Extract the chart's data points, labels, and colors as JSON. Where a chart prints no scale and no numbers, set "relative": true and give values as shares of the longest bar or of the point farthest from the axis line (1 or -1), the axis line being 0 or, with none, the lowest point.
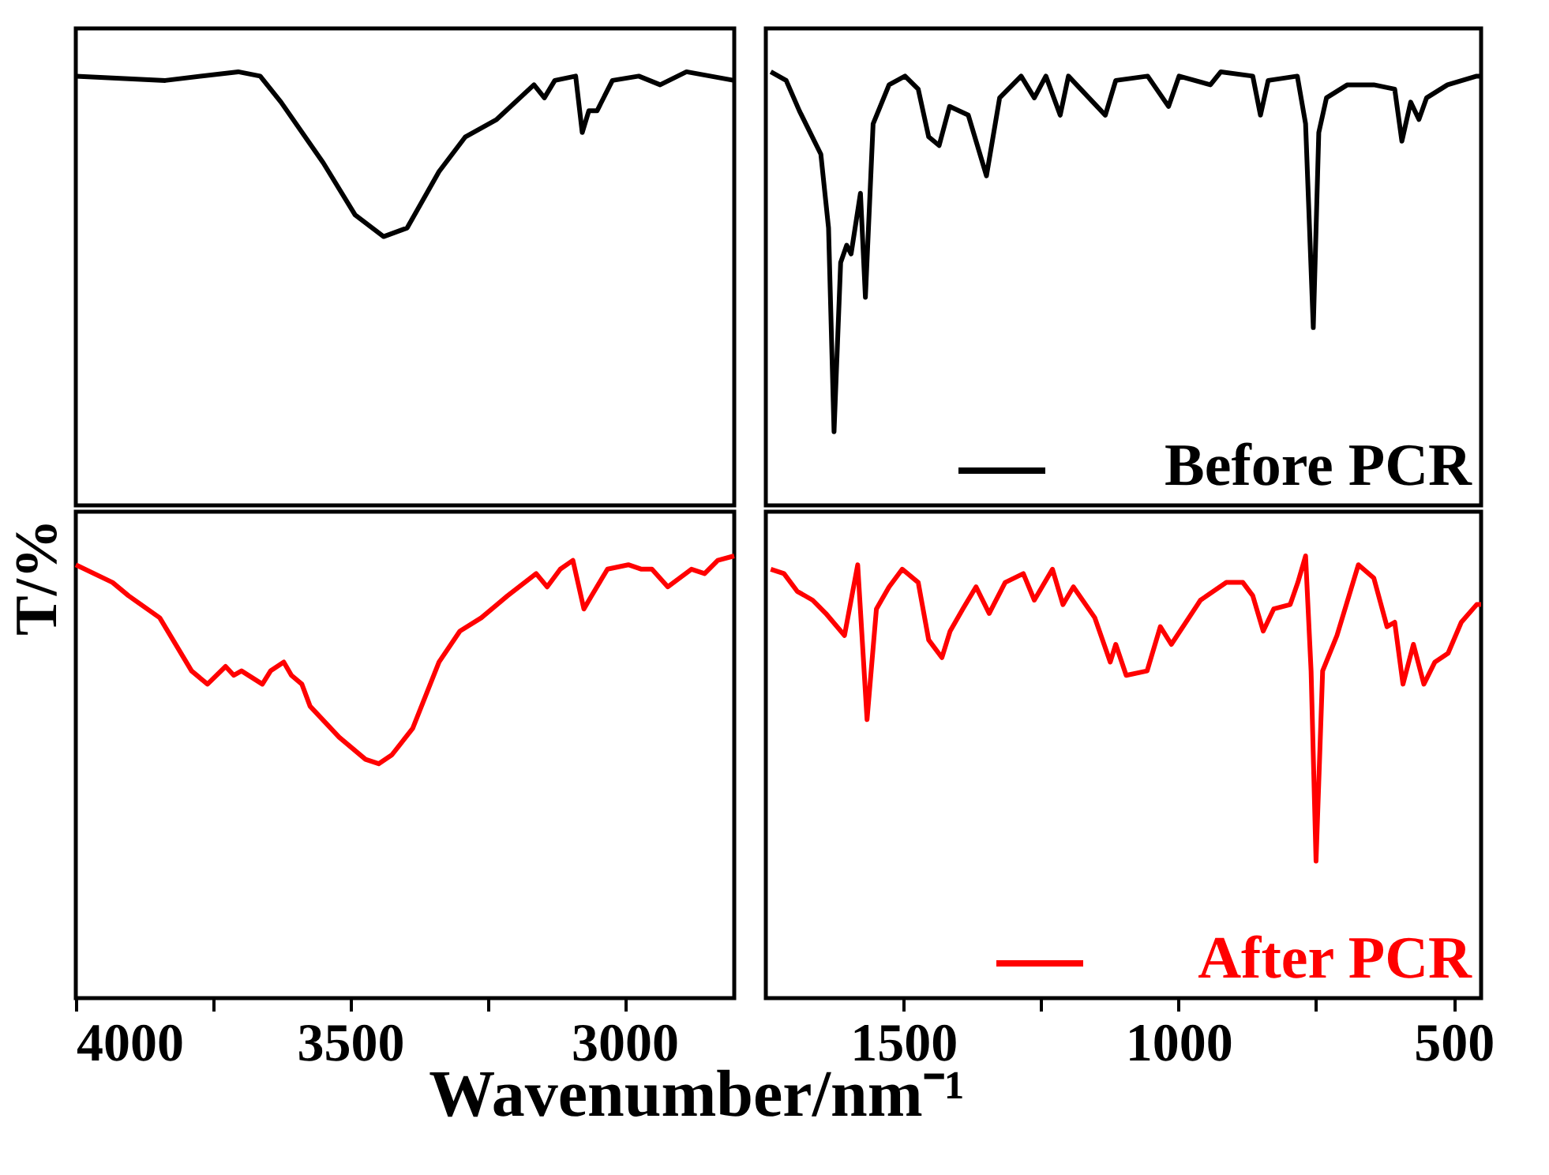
{
  "chart_data": [
    {
      "type": "line",
      "relative": true,
      "ylabel": "T/%",
      "tick_labels": false,
      "xlim": [
        4000,
        2800
      ],
      "x": [
        4000,
        3837,
        3704,
        3664,
        3626,
        3549,
        3491,
        3439,
        3396,
        3338,
        3290,
        3233,
        3165,
        3146,
        3127,
        3089,
        3077,
        3065,
        3050,
        3022,
        2974,
        2935,
        2887,
        2800
      ],
      "series": [
        {
          "color": "#000000",
          "values": [
            0.99,
            0.98,
            1,
            0.99,
            0.93,
            0.79,
            0.67,
            0.62,
            0.64,
            0.77,
            0.85,
            0.89,
            0.97,
            0.94,
            0.98,
            0.99,
            0.86,
            0.91,
            0.91,
            0.98,
            0.99,
            0.97,
            1,
            0.98
          ]
        }
      ]
    },
    {
      "type": "line",
      "relative": true,
      "tick_labels": false,
      "xlim": [
        1750,
        450
      ],
      "legend": "bottom right",
      "x": [
        1741,
        1713,
        1689,
        1650,
        1636,
        1626,
        1614,
        1603,
        1595,
        1578,
        1569,
        1555,
        1526,
        1497,
        1473,
        1454,
        1435,
        1416,
        1382,
        1349,
        1325,
        1286,
        1262,
        1241,
        1215,
        1200,
        1133,
        1114,
        1056,
        1018,
        999,
        942,
        923,
        865,
        851,
        837,
        784,
        769,
        755,
        745,
        731,
        693,
        645,
        607,
        594,
        578,
        563,
        549,
        511,
        458,
        450
      ],
      "series": [
        {
          "name": "Before PCR",
          "color": "#000000",
          "values": [
            1,
            0.98,
            0.91,
            0.81,
            0.64,
            0.17,
            0.56,
            0.6,
            0.58,
            0.72,
            0.48,
            0.88,
            0.97,
            0.99,
            0.96,
            0.85,
            0.83,
            0.92,
            0.9,
            0.76,
            0.94,
            0.99,
            0.94,
            0.99,
            0.9,
            0.99,
            0.9,
            0.98,
            0.99,
            0.92,
            0.99,
            0.97,
            1,
            0.99,
            0.9,
            0.98,
            0.99,
            0.88,
            0.41,
            0.86,
            0.94,
            0.97,
            0.97,
            0.96,
            0.84,
            0.93,
            0.89,
            0.94,
            0.97,
            0.99,
            0.99
          ]
        }
      ]
    },
    {
      "type": "line",
      "relative": true,
      "tick_labels": "x",
      "xlim": [
        4000,
        2800
      ],
      "xlabel": "Wavenumber/nm⁻¹",
      "xticks": [
        4000,
        {
          "value": 3750,
          "label": null
        },
        3500,
        {
          "value": 3250,
          "label": null
        },
        3000
      ],
      "x": [
        4000,
        3933,
        3904,
        3847,
        3789,
        3760,
        3727,
        3712,
        3698,
        3660,
        3645,
        3621,
        3607,
        3588,
        3573,
        3520,
        3472,
        3448,
        3424,
        3386,
        3338,
        3300,
        3261,
        3213,
        3161,
        3141,
        3117,
        3094,
        3074,
        3060,
        3031,
        2993,
        2969,
        2950,
        2921,
        2878,
        2854,
        2830,
        2800
      ],
      "series": [
        {
          "color": "#ff0000",
          "values": [
            0.98,
            0.94,
            0.91,
            0.86,
            0.74,
            0.71,
            0.75,
            0.73,
            0.74,
            0.71,
            0.74,
            0.76,
            0.73,
            0.71,
            0.66,
            0.59,
            0.54,
            0.53,
            0.55,
            0.61,
            0.76,
            0.83,
            0.86,
            0.91,
            0.96,
            0.93,
            0.97,
            0.99,
            0.88,
            0.91,
            0.97,
            0.98,
            0.97,
            0.97,
            0.93,
            0.97,
            0.96,
            0.99,
            1
          ]
        }
      ]
    },
    {
      "type": "line",
      "relative": true,
      "tick_labels": "x",
      "xlim": [
        1750,
        450
      ],
      "legend": "bottom right",
      "xticks": [
        1500,
        {
          "value": 1250,
          "label": null
        },
        1000,
        {
          "value": 750,
          "label": null
        },
        500
      ],
      "x": [
        1741,
        1717,
        1693,
        1665,
        1641,
        1607,
        1583,
        1566,
        1549,
        1526,
        1502,
        1473,
        1454,
        1430,
        1415,
        1392,
        1368,
        1344,
        1315,
        1282,
        1262,
        1229,
        1210,
        1191,
        1152,
        1124,
        1114,
        1095,
        1057,
        1033,
        1013,
        960,
        913,
        883,
        865,
        846,
        827,
        797,
        783,
        769,
        759,
        750,
        738,
        712,
        673,
        645,
        621,
        607,
        592,
        573,
        554,
        534,
        510,
        486,
        458,
        450
      ],
      "series": [
        {
          "name": "After PCR",
          "color": "#ff0000",
          "values": [
            0.97,
            0.96,
            0.92,
            0.9,
            0.87,
            0.82,
            0.98,
            0.63,
            0.88,
            0.93,
            0.97,
            0.94,
            0.81,
            0.77,
            0.83,
            0.88,
            0.93,
            0.87,
            0.94,
            0.96,
            0.9,
            0.97,
            0.89,
            0.93,
            0.86,
            0.76,
            0.8,
            0.73,
            0.74,
            0.84,
            0.8,
            0.9,
            0.94,
            0.94,
            0.91,
            0.83,
            0.88,
            0.89,
            0.94,
            1,
            0.74,
            0.31,
            0.74,
            0.82,
            0.98,
            0.95,
            0.84,
            0.85,
            0.71,
            0.8,
            0.71,
            0.76,
            0.78,
            0.85,
            0.89,
            0.89
          ]
        }
      ]
    }
  ]
}
